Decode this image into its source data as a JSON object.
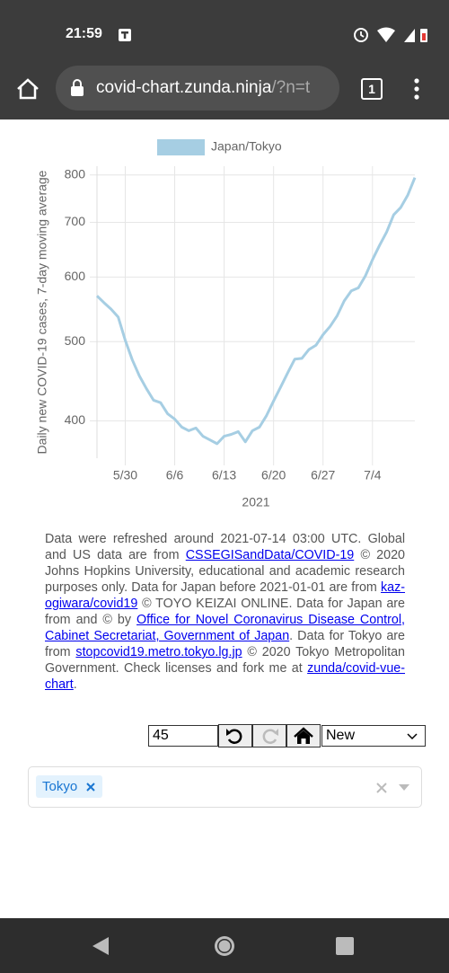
{
  "status_bar": {
    "time": "21:59"
  },
  "browser": {
    "url_host": "covid-chart.zunda.ninja",
    "url_rest": "/?n=t",
    "tab_count": "1"
  },
  "chart_data": {
    "type": "line",
    "legend": "top",
    "y_axis_label": "Daily new COVID-19 cases, 7-day moving average",
    "x_axis_label": "2021",
    "log_scale": true,
    "grid": true,
    "categories": [
      null,
      null,
      null,
      null,
      "5/30",
      null,
      null,
      null,
      null,
      null,
      null,
      "6/6",
      null,
      null,
      null,
      null,
      null,
      null,
      "6/13",
      null,
      null,
      null,
      null,
      null,
      null,
      "6/20",
      null,
      null,
      null,
      null,
      null,
      null,
      "6/27",
      null,
      null,
      null,
      null,
      null,
      null,
      "7/4",
      null,
      null,
      null,
      null,
      null,
      null
    ],
    "series": [
      {
        "name": "Japan/Tokyo",
        "color": "#a6cee3",
        "values": [
          569,
          558,
          548,
          536,
          502,
          475,
          454,
          438,
          424,
          421,
          408,
          402,
          393,
          389,
          392,
          383,
          379,
          375,
          383,
          385,
          388,
          377,
          389,
          393,
          406,
          423,
          440,
          458,
          476,
          477,
          489,
          495,
          510,
          522,
          538,
          561,
          577,
          582,
          602,
          630,
          656,
          681,
          715,
          730,
          756,
          794
        ]
      }
    ],
    "ylim": [
      360,
      820
    ],
    "yticks": [
      400,
      500,
      600,
      700,
      800
    ]
  },
  "notice": [
    {
      "text": "Data were refreshed around 2021-07-14 03:00 UTC. Global and US data are from ",
      "link": false
    },
    {
      "text": "CSSEGISandData/COVID-19",
      "link": true
    },
    {
      "text": " © 2020 Johns Hopkins University, educational and academic research purposes only. Data for Japan before 2021-01-01 are from ",
      "link": false
    },
    {
      "text": "kaz-ogiwara/covid19",
      "link": true
    },
    {
      "text": " © TOYO KEIZAI ONLINE. Data for Japan are from and © by ",
      "link": false
    },
    {
      "text": "Office for Novel Coronavirus Disease Control, Cabinet Secretariat, Government of Japan",
      "link": true
    },
    {
      "text": ". Data for Tokyo are from ",
      "link": false
    },
    {
      "text": "stopcovid19.metro.tokyo.lg.jp",
      "link": true
    },
    {
      "text": " © 2020 Tokyo Metropolitan Government. Check licenses and fork me at ",
      "link": false
    },
    {
      "text": "zunda/covid-vue-chart",
      "link": true
    },
    {
      "text": ".",
      "link": false
    }
  ],
  "controls": {
    "days": "45",
    "mode": "New"
  },
  "tags": [
    "Tokyo"
  ]
}
